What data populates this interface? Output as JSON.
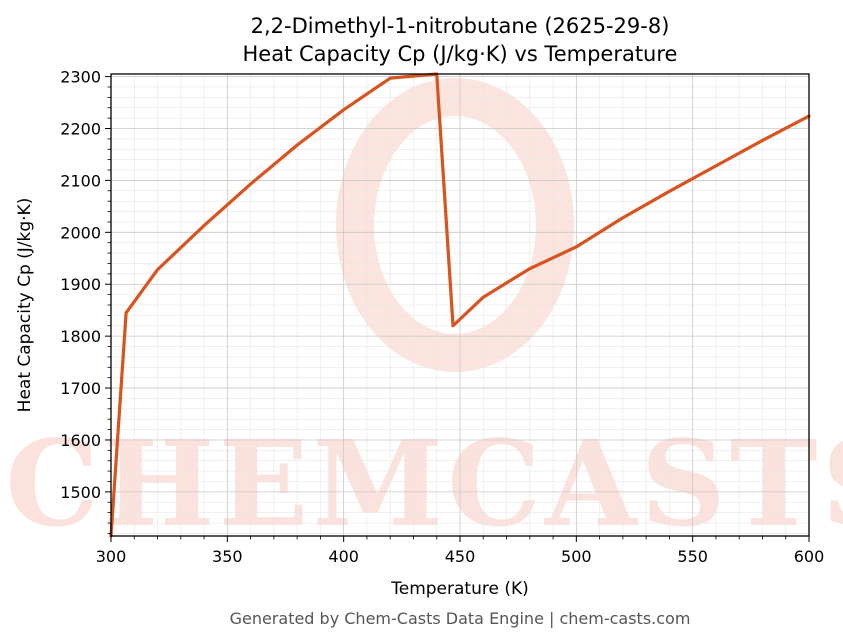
{
  "chart_data": {
    "type": "line",
    "title_line1": "2,2-Dimethyl-1-nitrobutane (2625-29-8)",
    "title_line2": "Heat Capacity Cp (J/kg·K) vs Temperature",
    "xlabel": "Temperature (K)",
    "ylabel": "Heat Capacity Cp (J/kg·K)",
    "xlim": [
      300,
      600
    ],
    "ylim": [
      1415,
      2305
    ],
    "x_ticks": [
      300,
      350,
      400,
      450,
      500,
      550,
      600
    ],
    "y_ticks": [
      1500,
      1600,
      1700,
      1800,
      1900,
      2000,
      2100,
      2200,
      2300
    ],
    "grid": true,
    "series": [
      {
        "color": "#d9531e",
        "x": [
          300,
          306.5,
          320,
          340,
          360,
          380,
          400,
          420,
          440,
          447,
          460,
          480,
          500,
          520,
          540,
          560,
          580,
          600
        ],
        "y": [
          1415,
          1845,
          1928,
          2013,
          2093,
          2168,
          2236,
          2297,
          2305,
          1820,
          1875,
          1930,
          1972,
          2028,
          2079,
          2128,
          2177,
          2224
        ]
      }
    ]
  },
  "watermark": "CHEMCASTS",
  "footer": "Generated by Chem-Casts Data Engine | chem-casts.com"
}
